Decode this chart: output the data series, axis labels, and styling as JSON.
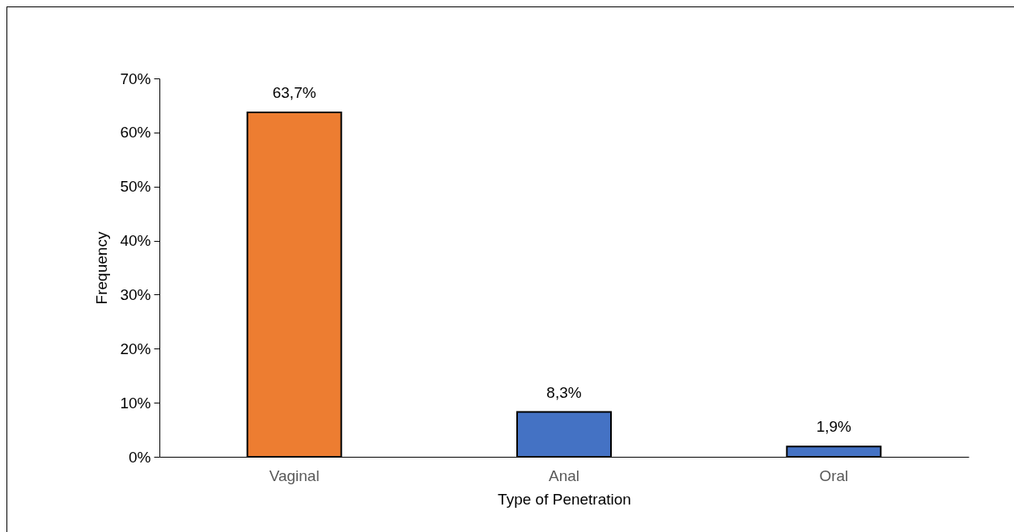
{
  "chart_data": {
    "type": "bar",
    "xlabel": "Type of Penetration",
    "ylabel": "Frequency",
    "categories": [
      "Vaginal",
      "Anal",
      "Oral"
    ],
    "values": [
      63.7,
      8.3,
      1.9
    ],
    "colors": [
      "#ed7d31",
      "#4472c4",
      "#4472c4"
    ],
    "value_labels": [
      "63,7%",
      "8,3%",
      "1,9%"
    ],
    "ylim": [
      0,
      70
    ],
    "yticks": [
      {
        "value": 0,
        "label": "0%"
      },
      {
        "value": 10,
        "label": "10%"
      },
      {
        "value": 20,
        "label": "20%"
      },
      {
        "value": 30,
        "label": "30%"
      },
      {
        "value": 40,
        "label": "40%"
      },
      {
        "value": 50,
        "label": "50%"
      },
      {
        "value": 60,
        "label": "60%"
      },
      {
        "value": 70,
        "label": "70%"
      }
    ],
    "grid": false
  }
}
